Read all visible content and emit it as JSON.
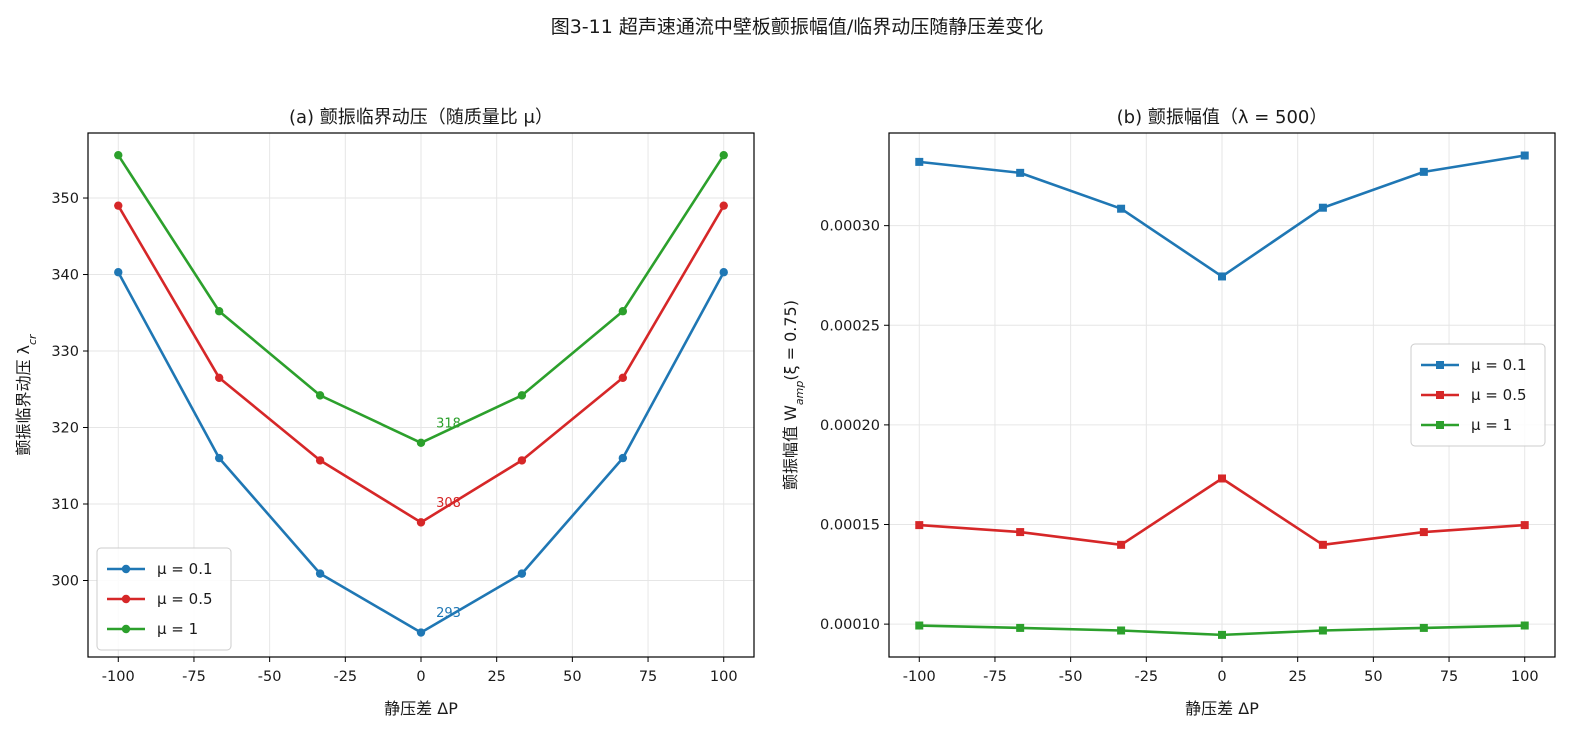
{
  "figure": {
    "suptitle": "图3-11  超声速通流中壁板颤振幅值/临界动压随静压差变化"
  },
  "colors": {
    "blue": "#1f77b4",
    "red": "#d62728",
    "green": "#2ca02c",
    "grid": "#e6e6e6",
    "axis": "#000000"
  },
  "chart_data": [
    {
      "type": "line",
      "title": "(a) 颤振临界动压（随质量比 μ）",
      "xlabel": "静压差 ΔP",
      "ylabel": "颤振临界动压 λ_cr",
      "xlim": [
        -110,
        110
      ],
      "ylim": [
        290,
        358.5
      ],
      "xticks": [
        -100,
        -75,
        -50,
        -25,
        0,
        25,
        50,
        75,
        100
      ],
      "yticks": [
        300,
        310,
        320,
        330,
        340,
        350
      ],
      "grid": true,
      "legend_position": "lower-left",
      "marker": "circle",
      "x": [
        -100,
        -66.67,
        -33.33,
        0,
        33.33,
        66.67,
        100
      ],
      "series": [
        {
          "name": "μ = 0.1",
          "color": "#1f77b4",
          "values": [
            340.3,
            316.0,
            300.9,
            293.2,
            300.9,
            316.0,
            340.3
          ]
        },
        {
          "name": "μ = 0.5",
          "color": "#d62728",
          "values": [
            349.0,
            326.5,
            315.7,
            307.6,
            315.7,
            326.5,
            349.0
          ]
        },
        {
          "name": "μ = 1",
          "color": "#2ca02c",
          "values": [
            355.6,
            335.2,
            324.2,
            318.0,
            324.2,
            335.2,
            355.6
          ]
        }
      ],
      "annotations": [
        {
          "text": "293",
          "x": 5,
          "y": 295.2,
          "color": "#1f77b4"
        },
        {
          "text": "308",
          "x": 5,
          "y": 309.6,
          "color": "#d62728"
        },
        {
          "text": "318",
          "x": 5,
          "y": 320.0,
          "color": "#2ca02c"
        }
      ]
    },
    {
      "type": "line",
      "title": "(b) 颤振幅值（λ = 500）",
      "xlabel": "静压差 ΔP",
      "ylabel": "颤振幅值 W_amp(ξ = 0.75)",
      "xlim": [
        -110,
        110
      ],
      "ylim": [
        8.35e-05,
        0.0003465
      ],
      "xticks": [
        -100,
        -75,
        -50,
        -25,
        0,
        25,
        50,
        75,
        100
      ],
      "yticks": [
        0.0001,
        0.00015,
        0.0002,
        0.00025,
        0.0003
      ],
      "ytick_labels": [
        "0.00010",
        "0.00015",
        "0.00020",
        "0.00025",
        "0.00030"
      ],
      "grid": true,
      "legend_position": "center-right",
      "marker": "square",
      "x": [
        -100,
        -66.67,
        -33.33,
        0,
        33.33,
        66.67,
        100
      ],
      "series": [
        {
          "name": "μ = 0.1",
          "color": "#1f77b4",
          "values": [
            0.000332,
            0.0003265,
            0.0003085,
            0.0002745,
            0.000309,
            0.000327,
            0.0003352
          ]
        },
        {
          "name": "μ = 0.5",
          "color": "#d62728",
          "values": [
            0.0001497,
            0.0001462,
            0.0001398,
            0.0001731,
            0.0001398,
            0.0001462,
            0.0001497
          ]
        },
        {
          "name": "μ = 1",
          "color": "#2ca02c",
          "values": [
            9.93e-05,
            9.81e-05,
            9.68e-05,
            9.46e-05,
            9.68e-05,
            9.81e-05,
            9.93e-05
          ]
        }
      ]
    }
  ]
}
